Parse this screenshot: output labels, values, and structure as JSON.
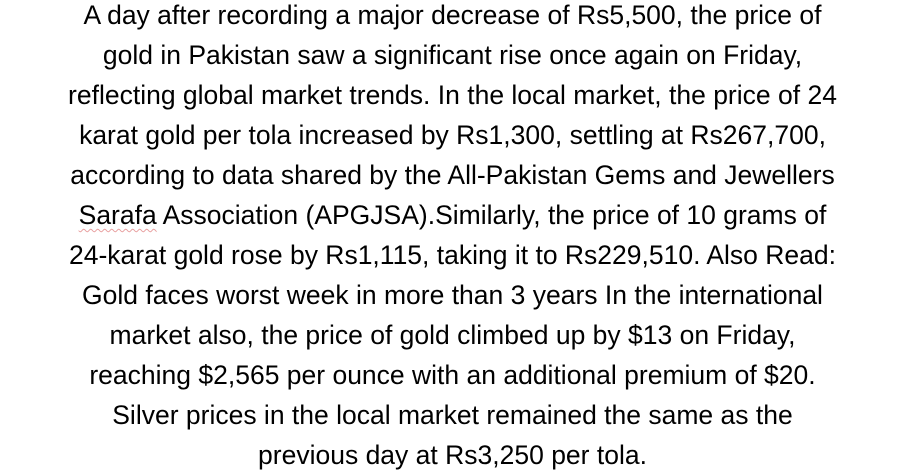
{
  "article": {
    "lines": [
      "A day after recording a major decrease of Rs5,500, the price of",
      "gold in Pakistan saw a significant rise once again on Friday,",
      "reflecting global market trends. In the local market, the price of 24",
      "karat gold per tola increased by Rs1,300, settling at Rs267,700,",
      "according to data shared by the All-Pakistan Gems and Jewellers",
      {
        "flagged": "Sarafa",
        "rest": " Association (APGJSA).Similarly, the price of 10 grams of"
      },
      "24-karat gold rose by Rs1,115, taking it to Rs229,510. Also Read:",
      "Gold faces worst week in more than 3 years In the international",
      "market also, the price of gold climbed up by $13 on Friday,",
      "reaching $2,565 per ounce with an additional premium of $20.",
      "Silver prices in the local market remained the same as the",
      "previous day at Rs3,250 per tola."
    ]
  }
}
